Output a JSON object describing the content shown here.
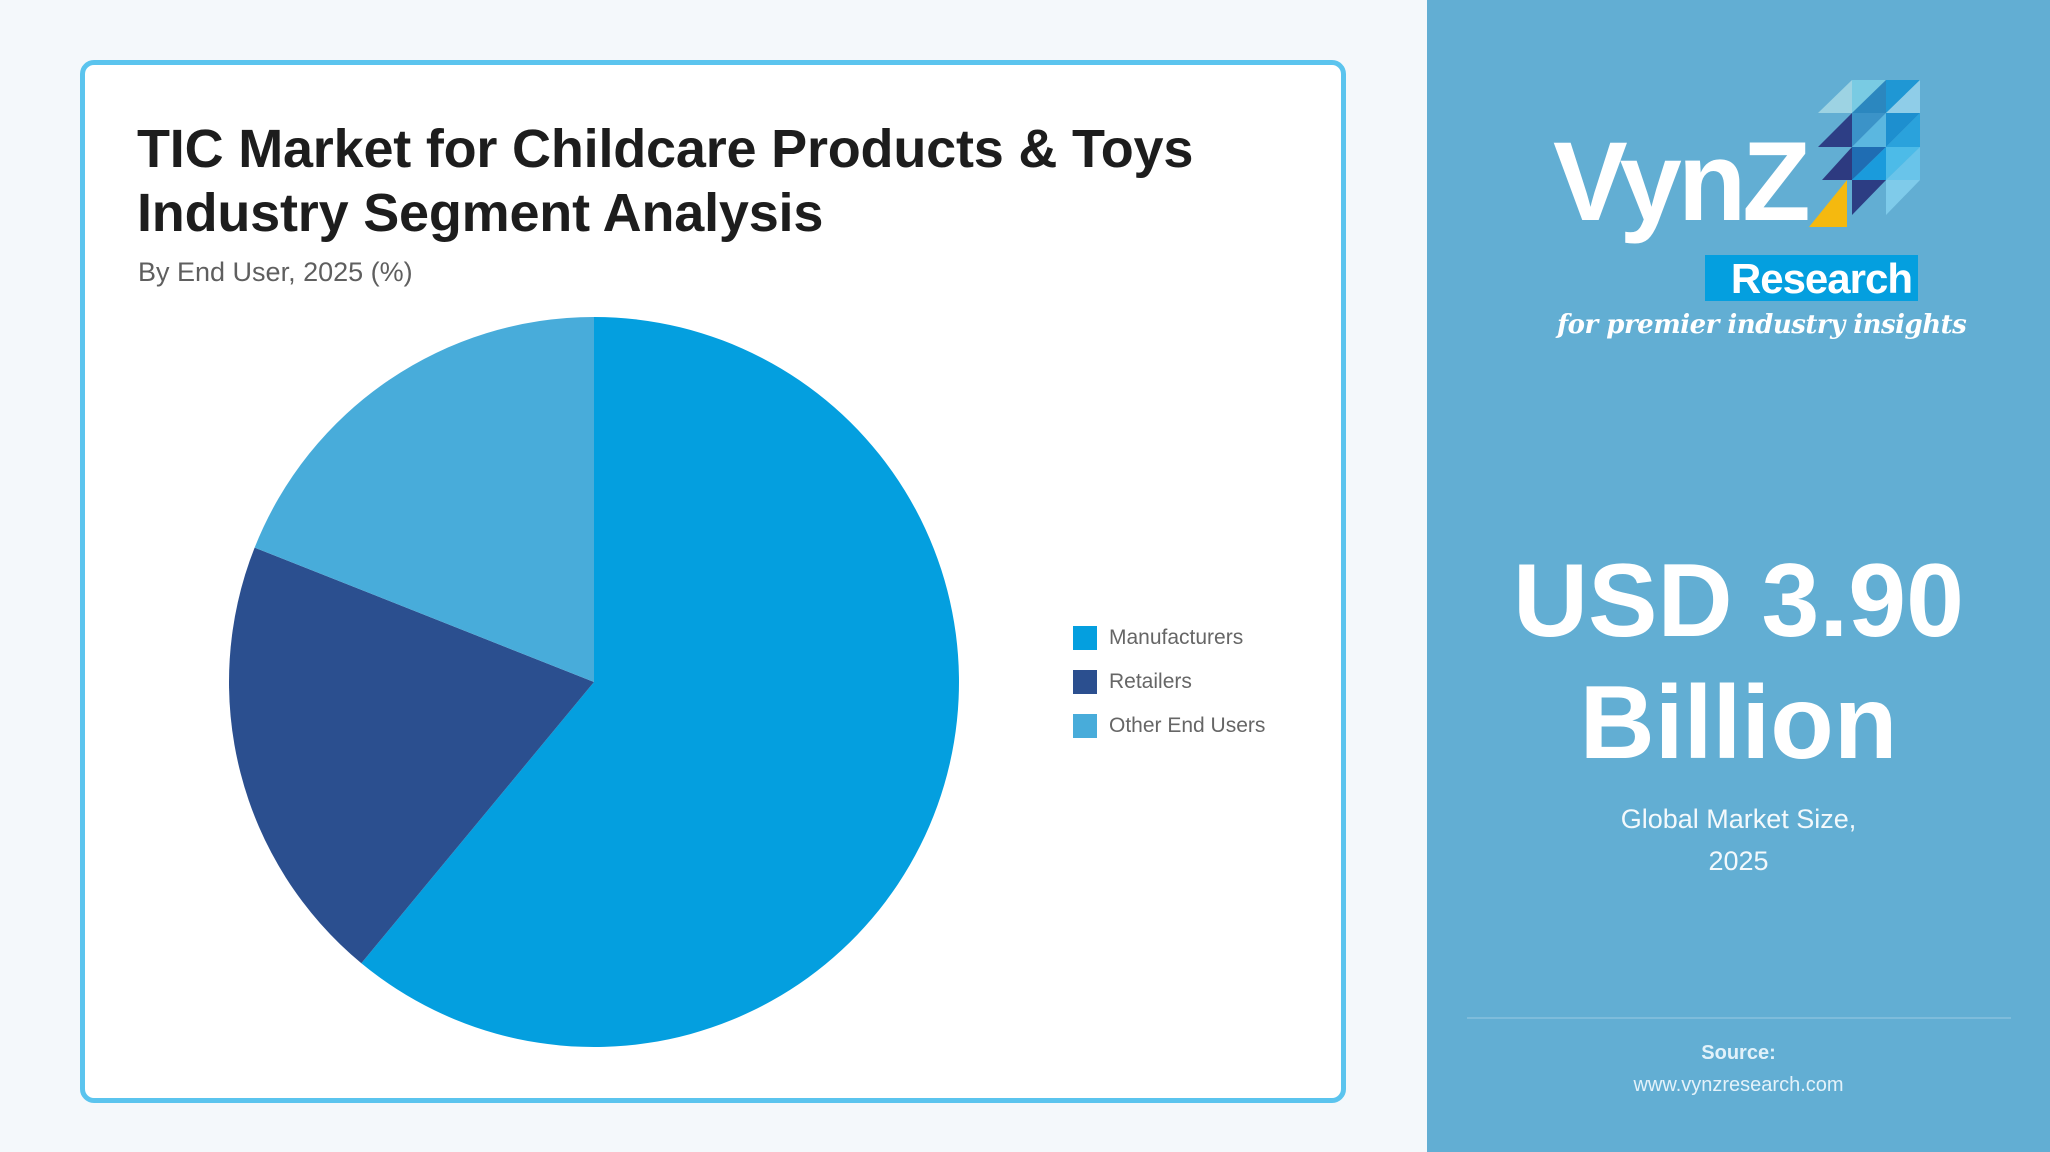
{
  "card": {
    "title_line1": "TIC Market for Childcare Products & Toys",
    "title_line2": "Industry Segment Analysis",
    "subtitle": "By End User, 2025 (%)"
  },
  "legend": [
    {
      "label": "Manufacturers",
      "color": "#049fdf"
    },
    {
      "label": "Retailers",
      "color": "#2b4f8f"
    },
    {
      "label": "Other End Users",
      "color": "#48acda"
    }
  ],
  "panel": {
    "logo": {
      "word": "VynZ",
      "badge": "Research",
      "tagline": "for premier industry insights"
    },
    "value_line1": "USD 3.90",
    "value_line2": "Billion",
    "caption_line1": "Global Market Size,",
    "caption_line2": "2025",
    "source_label": "Source:",
    "source_url": "www.vynzresearch.com",
    "background": "#62aed3"
  },
  "colors": {
    "page_background": "#f4f8fb",
    "card_border": "#5bc4ee",
    "accent_yellow": "#f5b90f"
  },
  "chart_data": {
    "type": "pie",
    "title": "TIC Market for Childcare Products & Toys Industry Segment Analysis",
    "subtitle": "By End User, 2025 (%)",
    "categories": [
      "Manufacturers",
      "Retailers",
      "Other End Users"
    ],
    "values": [
      61,
      20,
      19
    ],
    "colors": [
      "#049fdf",
      "#2b4f8f",
      "#48acda"
    ],
    "start_angle_deg": 0,
    "direction": "clockwise",
    "unit": "%",
    "legend_position": "right",
    "data_labels": false
  }
}
